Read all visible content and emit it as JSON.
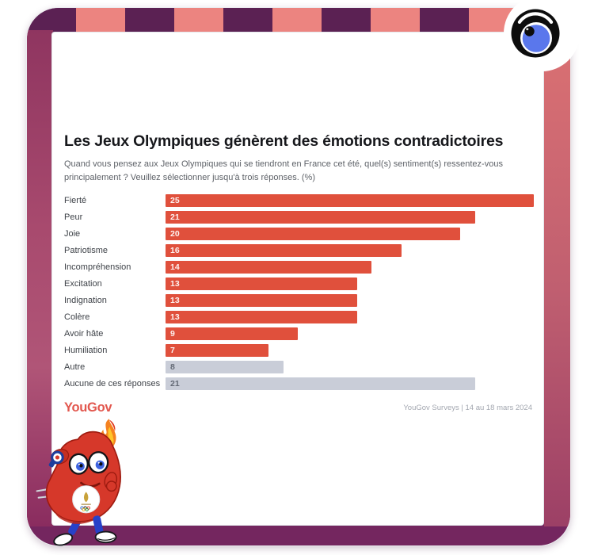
{
  "card": {
    "title": "Les Jeux Olympiques génèrent des émotions contradictoires",
    "subtitle": "Quand vous pensez aux Jeux Olympiques qui se tiendront en France cet été, quel(s) sentiment(s) ressentez-vous principalement ? Veuillez sélectionner jusqu'à trois réponses. (%)",
    "footer": {
      "logo": "YouGov",
      "source": "YouGov Surveys | 14 au 18 mars 2024"
    }
  },
  "chart_data": {
    "type": "bar",
    "orientation": "horizontal",
    "title": "Les Jeux Olympiques génèrent des émotions contradictoires",
    "categories": [
      "Fierté",
      "Peur",
      "Joie",
      "Patriotisme",
      "Incompréhension",
      "Excitation",
      "Indignation",
      "Colère",
      "Avoir hâte",
      "Humiliation",
      "Autre",
      "Aucune de ces réponses"
    ],
    "values": [
      25,
      21,
      20,
      16,
      14,
      13,
      13,
      13,
      9,
      7,
      8,
      21
    ],
    "bar_colors": [
      "red",
      "red",
      "red",
      "red",
      "red",
      "red",
      "red",
      "red",
      "red",
      "red",
      "gray",
      "gray"
    ],
    "value_labels": "inside-left",
    "xlabel": "",
    "ylabel": "",
    "xlim": [
      0,
      25
    ],
    "grid": false,
    "legend": "none",
    "unit": "%"
  },
  "colors": {
    "bar_red": "#E0503C",
    "bar_gray": "#C9CDD8",
    "logo_red": "#E2574E",
    "frame_purple": "#74265F",
    "stripe_purple": "#5B2153",
    "stripe_salmon": "#EC8480",
    "eye_iris_blue": "#5A77EC"
  },
  "icons": {
    "eye": "yougov-eye-icon",
    "mascot": "paris-2024-phryge-mascot"
  }
}
